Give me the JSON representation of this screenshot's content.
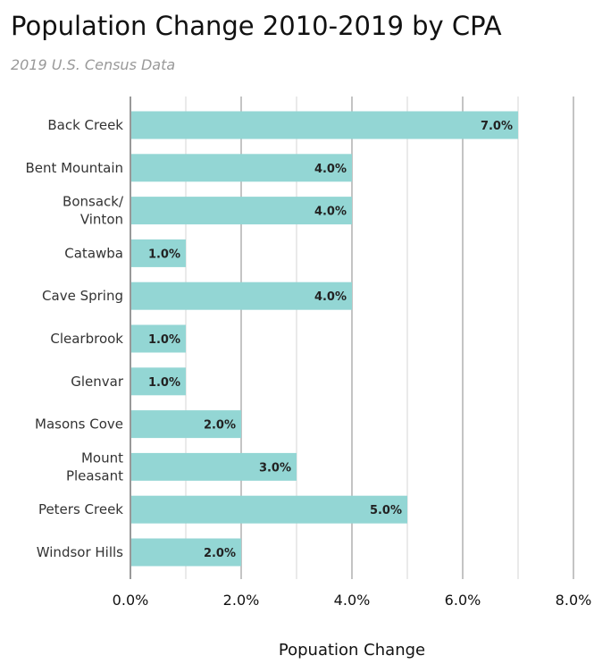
{
  "chart_data": {
    "type": "bar",
    "orientation": "horizontal",
    "title": "Population Change 2010-2019 by CPA",
    "subtitle": "2019 U.S. Census Data",
    "xlabel": "Popuation Change",
    "ylabel": "",
    "categories": [
      [
        "Back Creek"
      ],
      [
        "Bent Mountain"
      ],
      [
        "Bonsack/",
        "Vinton"
      ],
      [
        "Catawba"
      ],
      [
        "Cave Spring"
      ],
      [
        "Clearbrook"
      ],
      [
        "Glenvar"
      ],
      [
        "Masons Cove"
      ],
      [
        "Mount",
        "Pleasant"
      ],
      [
        "Peters Creek"
      ],
      [
        "Windsor Hills"
      ]
    ],
    "values": [
      7.0,
      4.0,
      4.0,
      1.0,
      4.0,
      1.0,
      1.0,
      2.0,
      3.0,
      5.0,
      2.0
    ],
    "value_labels": [
      "7.0%",
      "4.0%",
      "4.0%",
      "1.0%",
      "4.0%",
      "1.0%",
      "1.0%",
      "2.0%",
      "3.0%",
      "5.0%",
      "2.0%"
    ],
    "xlim": [
      0,
      8
    ],
    "ticks": [
      0,
      2,
      4,
      6,
      8
    ],
    "tick_labels": [
      "0.0%",
      "2.0%",
      "4.0%",
      "6.0%",
      "8.0%"
    ],
    "grid": true,
    "bar_color": "#93d6d4"
  }
}
